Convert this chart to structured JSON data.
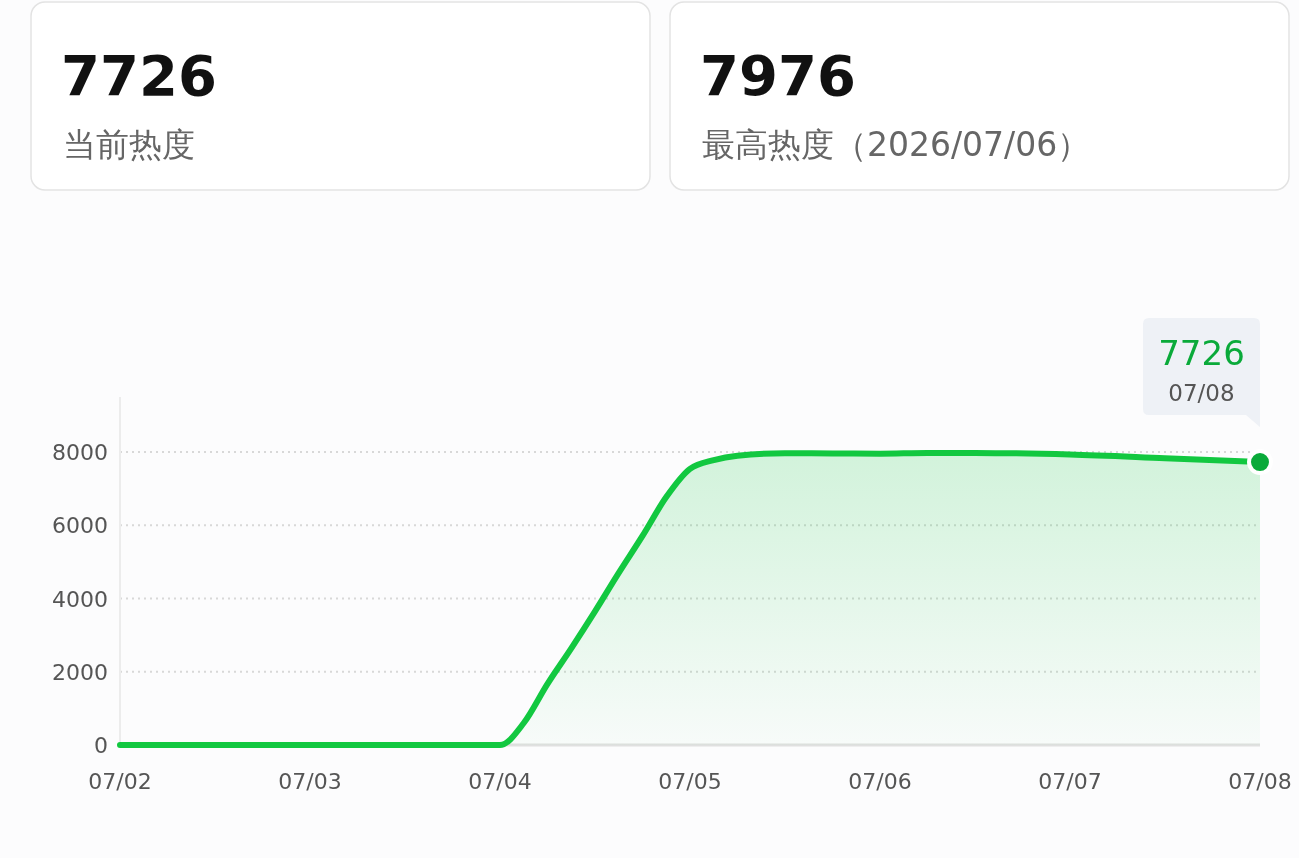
{
  "chart_data": [
    {
      "type": "other",
      "annotations": [
        "7726",
        "当前热度"
      ]
    },
    {
      "type": "other",
      "annotations": [
        "7976",
        "最高热度（2026/07/06）"
      ]
    },
    {
      "type": "area",
      "grid": "y",
      "marker": "none",
      "line_style": "solid",
      "xlim": [
        "2026-07-02",
        "2026-07-08"
      ],
      "xticks": [
        {
          "value": "2026-07-02",
          "label": "07/02"
        },
        {
          "value": "2026-07-03",
          "label": "07/03"
        },
        {
          "value": "2026-07-04",
          "label": "07/04"
        },
        {
          "value": "2026-07-05",
          "label": "07/05"
        },
        {
          "value": "2026-07-06",
          "label": "07/06"
        },
        {
          "value": "2026-07-07",
          "label": "07/07"
        },
        {
          "value": "2026-07-08",
          "label": "07/08"
        }
      ],
      "ylim": [
        0,
        8000
      ],
      "yticks": [
        0,
        2000,
        4000,
        6000,
        8000
      ],
      "series": [
        {
          "type": "area",
          "color": "#12c840",
          "x": [
            "2026-07-02T00:00",
            "2026-07-03T00:00",
            "2026-07-04T00:00",
            "2026-07-04T03:00",
            "2026-07-04T06:00",
            "2026-07-04T09:00",
            "2026-07-04T12:00",
            "2026-07-04T15:00",
            "2026-07-04T18:00",
            "2026-07-04T21:00",
            "2026-07-05T00:00",
            "2026-07-05T03:00",
            "2026-07-05T06:00",
            "2026-07-05T12:00",
            "2026-07-05T18:00",
            "2026-07-06T00:00",
            "2026-07-06T06:00",
            "2026-07-06T12:00",
            "2026-07-07T00:00",
            "2026-07-07T12:00",
            "2026-07-08T00:00"
          ],
          "values": [
            0,
            0,
            0,
            600,
            1670,
            2640,
            3650,
            4700,
            5710,
            6770,
            7540,
            7780,
            7900,
            7965,
            7960,
            7955,
            7976,
            7975,
            7930,
            7830,
            7726
          ]
        },
        {
          "type": "scatter",
          "color": "#0aaa3a",
          "marker": "circle",
          "x": [
            "2026-07-08T00:00"
          ],
          "values": [
            7726
          ]
        }
      ],
      "annotations": [
        {
          "text": "7726",
          "x": "2026-07-08T00:00",
          "y": 7726
        },
        {
          "text": "07/08",
          "x": "2026-07-08T00:00",
          "y": 7726
        }
      ]
    }
  ]
}
